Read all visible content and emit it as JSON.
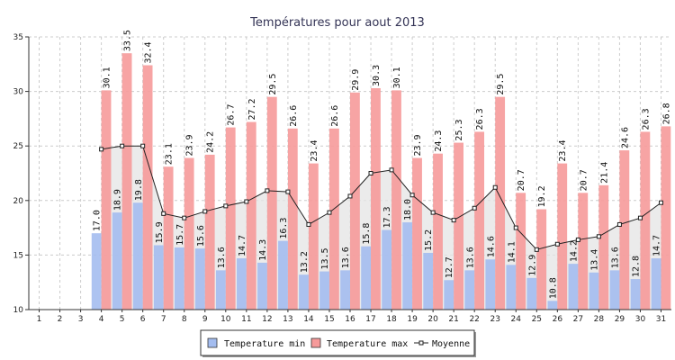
{
  "chart_data": {
    "type": "bar",
    "title": "Températures pour aout 2013",
    "categories": [
      "1",
      "2",
      "3",
      "4",
      "5",
      "6",
      "7",
      "8",
      "9",
      "10",
      "11",
      "12",
      "13",
      "14",
      "15",
      "16",
      "17",
      "18",
      "19",
      "20",
      "21",
      "22",
      "23",
      "24",
      "25",
      "26",
      "27",
      "28",
      "29",
      "30",
      "31"
    ],
    "ylim": [
      10,
      35
    ],
    "yticks": [
      10,
      15,
      20,
      25,
      30,
      35
    ],
    "grid": true,
    "legend_position": "bottom",
    "series": [
      {
        "name": "Temperature min",
        "type": "bar",
        "color": "#a4bdf0",
        "values": [
          null,
          null,
          null,
          17.0,
          18.9,
          19.8,
          15.9,
          15.7,
          15.6,
          13.6,
          14.7,
          14.3,
          16.3,
          13.2,
          13.5,
          13.6,
          15.8,
          17.3,
          18.0,
          15.2,
          12.7,
          13.6,
          14.6,
          14.1,
          12.9,
          10.8,
          14.2,
          13.4,
          13.6,
          12.8,
          14.7
        ],
        "labels": [
          "",
          "",
          "",
          "17.0",
          "18.9",
          "19.8",
          "15.9",
          "15.7",
          "15.6",
          "13.6",
          "14.7",
          "14.3",
          "16.3",
          "13.2",
          "13.5",
          "13.6",
          "15.8",
          "17.3",
          "18.0",
          "15.2",
          "12.7",
          "13.6",
          "14.6",
          "14.1",
          "12.9",
          "10.8",
          "14.2",
          "13.4",
          "13.6",
          "12.8",
          "14.7"
        ]
      },
      {
        "name": "Temperature max",
        "type": "bar",
        "color": "#f69a9a",
        "values": [
          null,
          null,
          null,
          30.1,
          33.5,
          32.4,
          23.1,
          23.9,
          24.2,
          26.7,
          27.2,
          29.5,
          26.6,
          23.4,
          26.6,
          29.9,
          30.3,
          30.1,
          23.9,
          24.3,
          25.3,
          26.3,
          29.5,
          20.7,
          19.2,
          23.4,
          20.7,
          21.4,
          24.6,
          26.3,
          26.8
        ],
        "labels": [
          "",
          "",
          "",
          "30.1",
          "33.5",
          "32.4",
          "23.1",
          "23.9",
          "24.2",
          "26.7",
          "27.2",
          "29.5",
          "26.6",
          "23.4",
          "26.6",
          "29.9",
          "30.3",
          "30.1",
          "23.9",
          "24.3",
          "25.3",
          "26.3",
          "29.5",
          "20.7",
          "19.2",
          "23.4",
          "20.7",
          "21.4",
          "24.6",
          "26.3",
          "26.8"
        ]
      },
      {
        "name": "Moyenne",
        "type": "line",
        "color": "#222222",
        "area_color": "#e4e4e4",
        "values": [
          null,
          null,
          null,
          24.7,
          25.0,
          25.0,
          18.8,
          18.4,
          19.0,
          19.5,
          19.9,
          20.9,
          20.8,
          17.8,
          18.9,
          20.4,
          22.5,
          22.8,
          20.5,
          18.9,
          18.2,
          19.3,
          21.2,
          17.5,
          15.5,
          16.0,
          16.4,
          16.7,
          17.8,
          18.4,
          19.8
        ]
      }
    ]
  }
}
